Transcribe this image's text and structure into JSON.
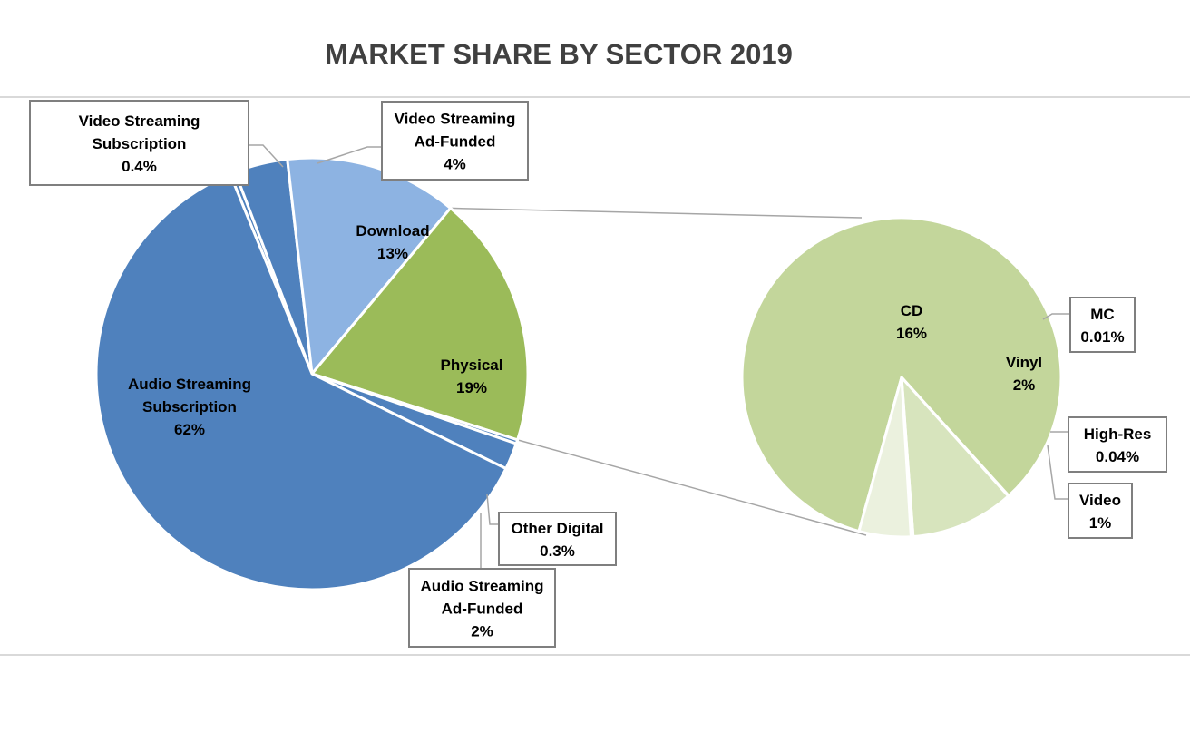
{
  "chart_data": {
    "type": "bar-of-pie",
    "title": "MARKET SHARE BY SECTOR 2019",
    "main_pie": [
      {
        "name": "Video Streaming Subscription",
        "value": 0.4,
        "label": [
          "Video Streaming",
          "Subscription",
          "0.4%"
        ],
        "color": "#4f81bd"
      },
      {
        "name": "Video Streaming Ad-Funded",
        "value": 4,
        "label": [
          "Video Streaming",
          "Ad-Funded",
          "4%"
        ],
        "color": "#4f81bd"
      },
      {
        "name": "Download",
        "value": 13,
        "label": [
          "Download",
          "13%"
        ],
        "color": "#8db3e2"
      },
      {
        "name": "Physical",
        "value": 19,
        "label": [
          "Physical",
          "19%"
        ],
        "color": "#9bbb59"
      },
      {
        "name": "Other Digital",
        "value": 0.3,
        "label": [
          "Other Digital",
          "0.3%"
        ],
        "color": "#4f81bd"
      },
      {
        "name": "Audio Streaming Ad-Funded",
        "value": 2,
        "label": [
          "Audio Streaming",
          "Ad-Funded",
          "2%"
        ],
        "color": "#4f81bd"
      },
      {
        "name": "Audio Streaming Subscription",
        "value": 62,
        "label": [
          "Audio Streaming",
          "Subscription",
          "62%"
        ],
        "color": "#4f81bd"
      }
    ],
    "secondary_pie": [
      {
        "name": "CD",
        "value": 16,
        "label": [
          "CD",
          "16%"
        ],
        "color": "#c3d69b"
      },
      {
        "name": "MC",
        "value": 0.01,
        "label": [
          "MC",
          "0.01%"
        ],
        "color": "#c3d69b"
      },
      {
        "name": "Vinyl",
        "value": 2,
        "label": [
          "Vinyl",
          "2%"
        ],
        "color": "#d7e4bd"
      },
      {
        "name": "High-Res",
        "value": 0.04,
        "label": [
          "High-Res",
          "0.04%"
        ],
        "color": "#ebf1de"
      },
      {
        "name": "Video",
        "value": 1,
        "label": [
          "Video",
          "1%"
        ],
        "color": "#ebf1de"
      }
    ],
    "colors": {
      "title": "#404040",
      "label_border": "#7f7f7f",
      "connector": "#a6a6a6",
      "slice_border": "#ffffff"
    }
  }
}
